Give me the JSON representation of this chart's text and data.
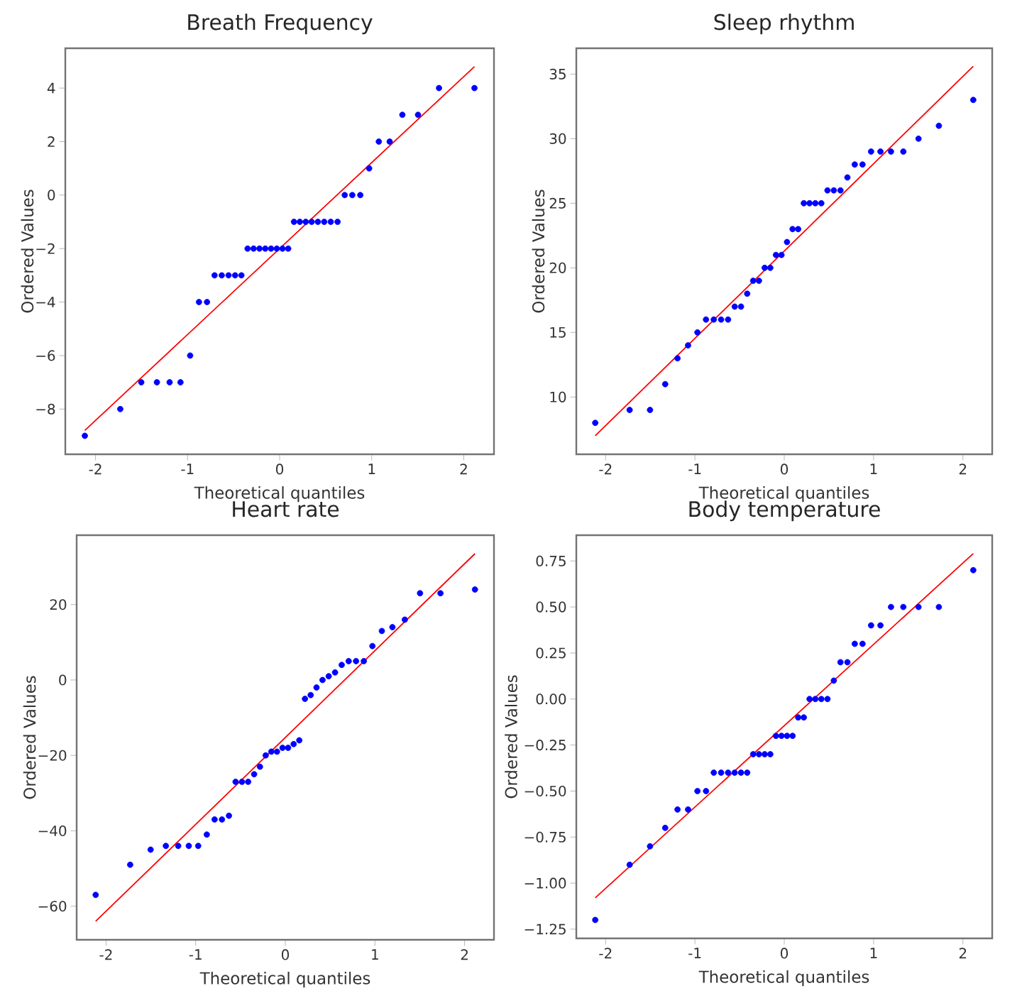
{
  "chart_data": [
    {
      "type": "scatter",
      "title": "Breath Frequency",
      "xlabel": "Theoretical quantiles",
      "ylabel": "Ordered Values",
      "xlim": [
        -2.328,
        2.328
      ],
      "ylim": [
        -9.69,
        5.49
      ],
      "xticks": [
        -2,
        -1,
        0,
        1,
        2
      ],
      "yticks": [
        {
          "value": -8,
          "label": "−8"
        },
        {
          "value": -6,
          "label": "−6"
        },
        {
          "value": -4,
          "label": "−4"
        },
        {
          "value": -2,
          "label": "−2"
        },
        0,
        2,
        4
      ],
      "series": [
        {
          "type": "scatter",
          "marker": "circle",
          "color": "#0000ff",
          "x": [
            -2.116,
            -1.731,
            -1.503,
            -1.333,
            -1.195,
            -1.077,
            -0.972,
            -0.876,
            -0.789,
            -0.707,
            -0.629,
            -0.555,
            -0.484,
            -0.415,
            -0.348,
            -0.283,
            -0.219,
            -0.156,
            -0.093,
            -0.031,
            0.031,
            0.093,
            0.156,
            0.219,
            0.283,
            0.348,
            0.415,
            0.484,
            0.555,
            0.629,
            0.707,
            0.789,
            0.876,
            0.972,
            1.077,
            1.195,
            1.333,
            1.503,
            1.731,
            2.116
          ],
          "values": [
            -9,
            -8,
            -7,
            -7,
            -7,
            -7,
            -6,
            -4,
            -4,
            -3,
            -3,
            -3,
            -3,
            -3,
            -2,
            -2,
            -2,
            -2,
            -2,
            -2,
            -2,
            -2,
            -1,
            -1,
            -1,
            -1,
            -1,
            -1,
            -1,
            -1,
            0,
            0,
            0,
            1,
            2,
            2,
            3,
            3,
            4,
            4
          ]
        },
        {
          "type": "line",
          "marker": "none",
          "color": "#ff0000",
          "x": [
            -2.116,
            2.116
          ],
          "values": [
            -8.8,
            4.8
          ]
        }
      ]
    },
    {
      "type": "scatter",
      "title": "Sleep rhythm",
      "xlabel": "Theoretical quantiles",
      "ylabel": "Ordered Values",
      "xlim": [
        -2.328,
        2.328
      ],
      "ylim": [
        5.57,
        37.0
      ],
      "xticks": [
        -2,
        -1,
        0,
        1,
        2
      ],
      "yticks": [
        10,
        15,
        20,
        25,
        30,
        35
      ],
      "series": [
        {
          "type": "scatter",
          "marker": "circle",
          "color": "#0000ff",
          "x": [
            -2.116,
            -1.731,
            -1.503,
            -1.333,
            -1.195,
            -1.077,
            -0.972,
            -0.876,
            -0.789,
            -0.707,
            -0.629,
            -0.555,
            -0.484,
            -0.415,
            -0.348,
            -0.283,
            -0.219,
            -0.156,
            -0.093,
            -0.031,
            0.031,
            0.093,
            0.156,
            0.219,
            0.283,
            0.348,
            0.415,
            0.484,
            0.555,
            0.629,
            0.707,
            0.789,
            0.876,
            0.972,
            1.077,
            1.195,
            1.333,
            1.503,
            1.731,
            2.116
          ],
          "values": [
            8,
            9,
            9,
            11,
            13,
            14,
            15,
            16,
            16,
            16,
            16,
            17,
            17,
            18,
            19,
            19,
            20,
            20,
            21,
            21,
            22,
            23,
            23,
            25,
            25,
            25,
            25,
            26,
            26,
            26,
            27,
            28,
            28,
            29,
            29,
            29,
            29,
            30,
            31,
            33
          ]
        },
        {
          "type": "line",
          "marker": "none",
          "color": "#ff0000",
          "x": [
            -2.116,
            2.116
          ],
          "values": [
            7.0,
            35.6
          ]
        }
      ]
    },
    {
      "type": "scatter",
      "title": "Heart rate",
      "xlabel": "Theoretical quantiles",
      "ylabel": "Ordered Values",
      "xlim": [
        -2.328,
        2.328
      ],
      "ylim": [
        -68.9,
        38.4
      ],
      "xticks": [
        -2,
        -1,
        0,
        1,
        2
      ],
      "yticks": [
        {
          "value": -60,
          "label": "−60"
        },
        {
          "value": -40,
          "label": "−40"
        },
        {
          "value": -20,
          "label": "−20"
        },
        0,
        20
      ],
      "series": [
        {
          "type": "scatter",
          "marker": "circle",
          "color": "#0000ff",
          "x": [
            -2.116,
            -1.731,
            -1.503,
            -1.333,
            -1.195,
            -1.077,
            -0.972,
            -0.876,
            -0.789,
            -0.707,
            -0.629,
            -0.555,
            -0.484,
            -0.415,
            -0.348,
            -0.283,
            -0.219,
            -0.156,
            -0.093,
            -0.031,
            0.031,
            0.093,
            0.156,
            0.219,
            0.283,
            0.348,
            0.415,
            0.484,
            0.555,
            0.629,
            0.707,
            0.789,
            0.876,
            0.972,
            1.077,
            1.195,
            1.333,
            1.503,
            1.731,
            2.116
          ],
          "values": [
            -57,
            -49,
            -45,
            -44,
            -44,
            -44,
            -44,
            -41,
            -37,
            -37,
            -36,
            -27,
            -27,
            -27,
            -25,
            -23,
            -20,
            -19,
            -19,
            -18,
            -18,
            -17,
            -16,
            -5,
            -4,
            -2,
            0,
            1,
            2,
            4,
            5,
            5,
            5,
            9,
            13,
            14,
            16,
            23,
            23,
            24
          ]
        },
        {
          "type": "line",
          "marker": "none",
          "color": "#ff0000",
          "x": [
            -2.116,
            2.116
          ],
          "values": [
            -64,
            33.5
          ]
        }
      ]
    },
    {
      "type": "scatter",
      "title": "Body temperature",
      "xlabel": "Theoretical quantiles",
      "ylabel": "Ordered Values",
      "xlim": [
        -2.328,
        2.328
      ],
      "ylim": [
        -1.3,
        0.89
      ],
      "xticks": [
        -2,
        -1,
        0,
        1,
        2
      ],
      "yticks": [
        {
          "value": -1.25,
          "label": "−1.25"
        },
        {
          "value": -1.0,
          "label": "−1.00"
        },
        {
          "value": -0.75,
          "label": "−0.75"
        },
        {
          "value": -0.5,
          "label": "−0.50"
        },
        {
          "value": -0.25,
          "label": "−0.25"
        },
        {
          "value": 0,
          "label": "0.00"
        },
        0.25,
        {
          "value": 0.5,
          "label": "0.50"
        },
        0.75
      ],
      "series": [
        {
          "type": "scatter",
          "marker": "circle",
          "color": "#0000ff",
          "x": [
            -2.116,
            -1.731,
            -1.503,
            -1.333,
            -1.195,
            -1.077,
            -0.972,
            -0.876,
            -0.789,
            -0.707,
            -0.629,
            -0.555,
            -0.484,
            -0.415,
            -0.348,
            -0.283,
            -0.219,
            -0.156,
            -0.093,
            -0.031,
            0.031,
            0.093,
            0.156,
            0.219,
            0.283,
            0.348,
            0.415,
            0.484,
            0.555,
            0.629,
            0.707,
            0.789,
            0.876,
            0.972,
            1.077,
            1.195,
            1.333,
            1.503,
            1.731,
            2.116
          ],
          "values": [
            -1.2,
            -0.9,
            -0.8,
            -0.7,
            -0.6,
            -0.6,
            -0.5,
            -0.5,
            -0.4,
            -0.4,
            -0.4,
            -0.4,
            -0.4,
            -0.4,
            -0.3,
            -0.3,
            -0.3,
            -0.3,
            -0.2,
            -0.2,
            -0.2,
            -0.2,
            -0.1,
            -0.1,
            0.0,
            0.0,
            0.0,
            0.0,
            0.1,
            0.2,
            0.2,
            0.3,
            0.3,
            0.4,
            0.4,
            0.5,
            0.5,
            0.5,
            0.5,
            0.7
          ]
        },
        {
          "type": "line",
          "marker": "none",
          "color": "#ff0000",
          "x": [
            -2.116,
            2.116
          ],
          "values": [
            -1.08,
            0.79
          ]
        }
      ]
    }
  ]
}
